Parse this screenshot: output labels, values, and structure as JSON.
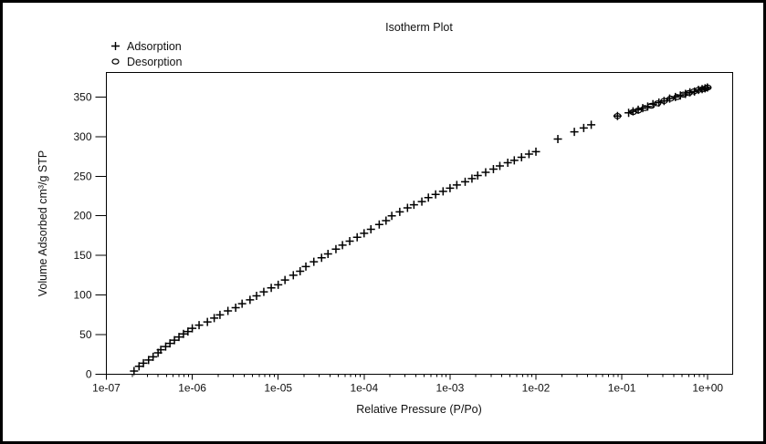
{
  "window": {
    "background": "#ffffff",
    "border_color": "#000000"
  },
  "chart_data": {
    "type": "scatter",
    "title": "Isotherm Plot",
    "xlabel": "Relative Pressure (P/Po)",
    "ylabel": "Volume Adsorbed cm³/g STP",
    "x_scale": "log",
    "xlim_log10": [
      -7,
      0.29
    ],
    "ylim": [
      0,
      381
    ],
    "grid": false,
    "legend_position": "top-left",
    "marker_color": "#000000",
    "x_ticks": [
      {
        "log10": -7,
        "label": "1e-07"
      },
      {
        "log10": -6,
        "label": "1e-06"
      },
      {
        "log10": -5,
        "label": "1e-05"
      },
      {
        "log10": -4,
        "label": "1e-04"
      },
      {
        "log10": -3,
        "label": "1e-03"
      },
      {
        "log10": -2,
        "label": "1e-02"
      },
      {
        "log10": -1,
        "label": "1e-01"
      },
      {
        "log10": 0,
        "label": "1e+00"
      }
    ],
    "y_ticks": [
      0,
      50,
      100,
      150,
      200,
      250,
      300,
      350
    ],
    "series": [
      {
        "name": "Adsorption",
        "marker": "plus",
        "points": [
          [
            2.1e-07,
            4
          ],
          [
            2.4e-07,
            10
          ],
          [
            2.7e-07,
            14
          ],
          [
            3.1e-07,
            18
          ],
          [
            3.5e-07,
            22
          ],
          [
            4e-07,
            27
          ],
          [
            4.3e-07,
            31
          ],
          [
            4.9e-07,
            35
          ],
          [
            5.5e-07,
            39
          ],
          [
            6.2e-07,
            43
          ],
          [
            7e-07,
            47
          ],
          [
            7.9e-07,
            51
          ],
          [
            8.9e-07,
            54
          ],
          [
            1e-06,
            58
          ],
          [
            1.2e-06,
            62
          ],
          [
            1.5e-06,
            66
          ],
          [
            1.8e-06,
            71
          ],
          [
            2.1e-06,
            75
          ],
          [
            2.6e-06,
            80
          ],
          [
            3.2e-06,
            84
          ],
          [
            3.8e-06,
            89
          ],
          [
            4.7e-06,
            94
          ],
          [
            5.6e-06,
            99
          ],
          [
            6.8e-06,
            104
          ],
          [
            8.3e-06,
            109
          ],
          [
            1e-05,
            113
          ],
          [
            1.2e-05,
            119
          ],
          [
            1.5e-05,
            125
          ],
          [
            1.8e-05,
            130
          ],
          [
            2.1e-05,
            136
          ],
          [
            2.6e-05,
            142
          ],
          [
            3.2e-05,
            147
          ],
          [
            3.8e-05,
            152
          ],
          [
            4.7e-05,
            158
          ],
          [
            5.6e-05,
            163
          ],
          [
            6.8e-05,
            168
          ],
          [
            8.3e-05,
            173
          ],
          [
            0.0001,
            178
          ],
          [
            0.00012,
            183
          ],
          [
            0.00015,
            189
          ],
          [
            0.00018,
            194
          ],
          [
            0.00021,
            200
          ],
          [
            0.00026,
            205
          ],
          [
            0.00032,
            210
          ],
          [
            0.00038,
            214
          ],
          [
            0.00047,
            218
          ],
          [
            0.00056,
            223
          ],
          [
            0.00068,
            227
          ],
          [
            0.00083,
            231
          ],
          [
            0.001,
            235
          ],
          [
            0.0012,
            239
          ],
          [
            0.0015,
            243
          ],
          [
            0.0018,
            247
          ],
          [
            0.0021,
            251
          ],
          [
            0.0026,
            255
          ],
          [
            0.0032,
            259
          ],
          [
            0.0038,
            263
          ],
          [
            0.0047,
            267
          ],
          [
            0.0056,
            270
          ],
          [
            0.0068,
            274
          ],
          [
            0.0083,
            278
          ],
          [
            0.01,
            281
          ],
          [
            0.018,
            297
          ],
          [
            0.028,
            306
          ],
          [
            0.036,
            311
          ],
          [
            0.044,
            315
          ],
          [
            0.089,
            326
          ],
          [
            0.12,
            330
          ],
          [
            0.135,
            332
          ],
          [
            0.155,
            334
          ],
          [
            0.175,
            336
          ],
          [
            0.2,
            338
          ],
          [
            0.23,
            341
          ],
          [
            0.27,
            343
          ],
          [
            0.31,
            345
          ],
          [
            0.36,
            348
          ],
          [
            0.42,
            350
          ],
          [
            0.48,
            352
          ],
          [
            0.55,
            354
          ],
          [
            0.62,
            356
          ],
          [
            0.7,
            357
          ],
          [
            0.78,
            359
          ],
          [
            0.86,
            360
          ],
          [
            0.93,
            361
          ],
          [
            0.99,
            362
          ]
        ]
      },
      {
        "name": "Desorption",
        "marker": "circle",
        "points": [
          [
            0.089,
            326
          ],
          [
            0.135,
            331
          ],
          [
            0.155,
            333
          ],
          [
            0.185,
            336
          ],
          [
            0.22,
            339
          ],
          [
            0.26,
            342
          ],
          [
            0.31,
            345
          ],
          [
            0.37,
            348
          ],
          [
            0.44,
            350
          ],
          [
            0.52,
            353
          ],
          [
            0.6,
            355
          ],
          [
            0.69,
            357
          ],
          [
            0.78,
            359
          ],
          [
            0.87,
            360
          ],
          [
            0.95,
            361
          ],
          [
            1.0,
            362
          ]
        ]
      }
    ]
  }
}
